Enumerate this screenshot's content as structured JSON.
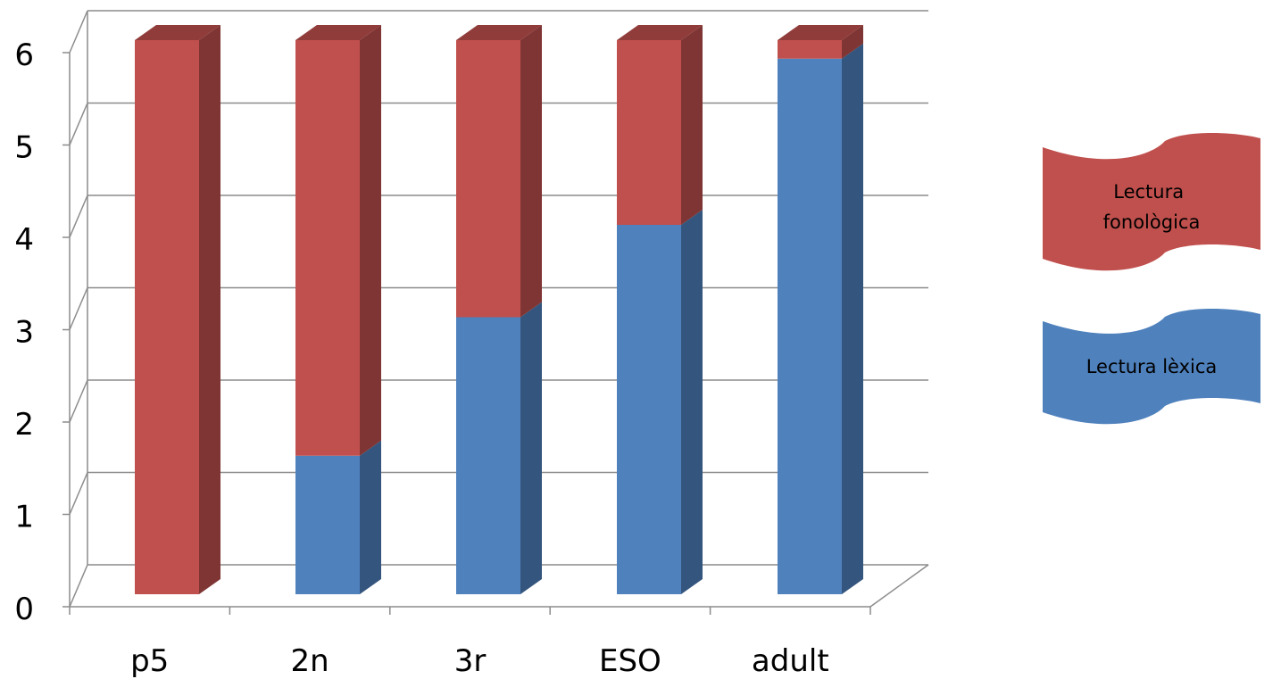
{
  "chart_data": {
    "type": "bar",
    "stacked": true,
    "three_d": true,
    "categories": [
      "p5",
      "2n",
      "3r",
      "ESO",
      "adult"
    ],
    "series": [
      {
        "name": "Lectura lèxica",
        "color": "#4F81BD",
        "values": [
          0,
          1.5,
          3,
          4,
          5.8
        ]
      },
      {
        "name": "Lectura fonològica",
        "color": "#C0504D",
        "values": [
          6,
          4.5,
          3,
          2,
          0.2
        ]
      }
    ],
    "ylim": [
      0,
      6
    ],
    "yticks": [
      "0",
      "1",
      "2",
      "3",
      "4",
      "5",
      "6"
    ],
    "grid": true,
    "legend_position": "right"
  },
  "legend": {
    "items": [
      {
        "label_lines": [
          "Lectura",
          "fonològica"
        ],
        "color": "#C0504D"
      },
      {
        "label_lines": [
          "Lectura lèxica"
        ],
        "color": "#4F81BD"
      }
    ]
  }
}
